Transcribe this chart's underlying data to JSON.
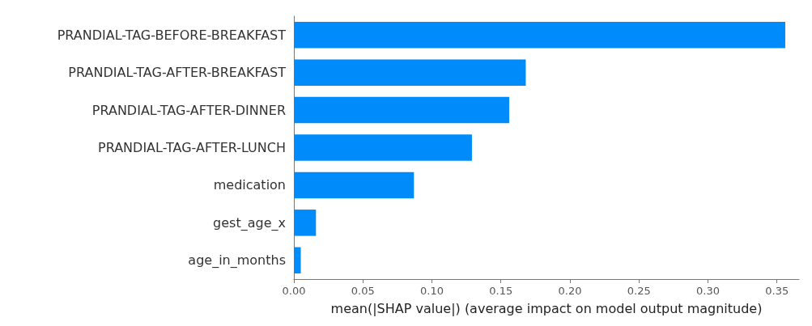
{
  "chart_data": {
    "type": "bar",
    "orientation": "horizontal",
    "xlabel": "mean(|SHAP value|) (average impact on model output magnitude)",
    "categories": [
      "PRANDIAL-TAG-BEFORE-BREAKFAST",
      "PRANDIAL-TAG-AFTER-BREAKFAST",
      "PRANDIAL-TAG-AFTER-DINNER",
      "PRANDIAL-TAG-AFTER-LUNCH",
      "medication",
      "gest_age_x",
      "age_in_months"
    ],
    "values": [
      0.356,
      0.168,
      0.156,
      0.129,
      0.087,
      0.016,
      0.005
    ],
    "color": "#008bfb",
    "xlim": [
      0,
      0.366
    ],
    "xticks": [
      {
        "value": 0,
        "label": "0.00"
      },
      {
        "value": 0.05,
        "label": "0.05"
      },
      {
        "value": 0.1,
        "label": "0.10"
      },
      {
        "value": 0.15,
        "label": "0.15"
      },
      {
        "value": 0.2,
        "label": "0.20"
      },
      {
        "value": 0.25,
        "label": "0.25"
      },
      {
        "value": 0.3,
        "label": "0.30"
      },
      {
        "value": 0.35,
        "label": "0.35"
      }
    ],
    "grid": false
  }
}
